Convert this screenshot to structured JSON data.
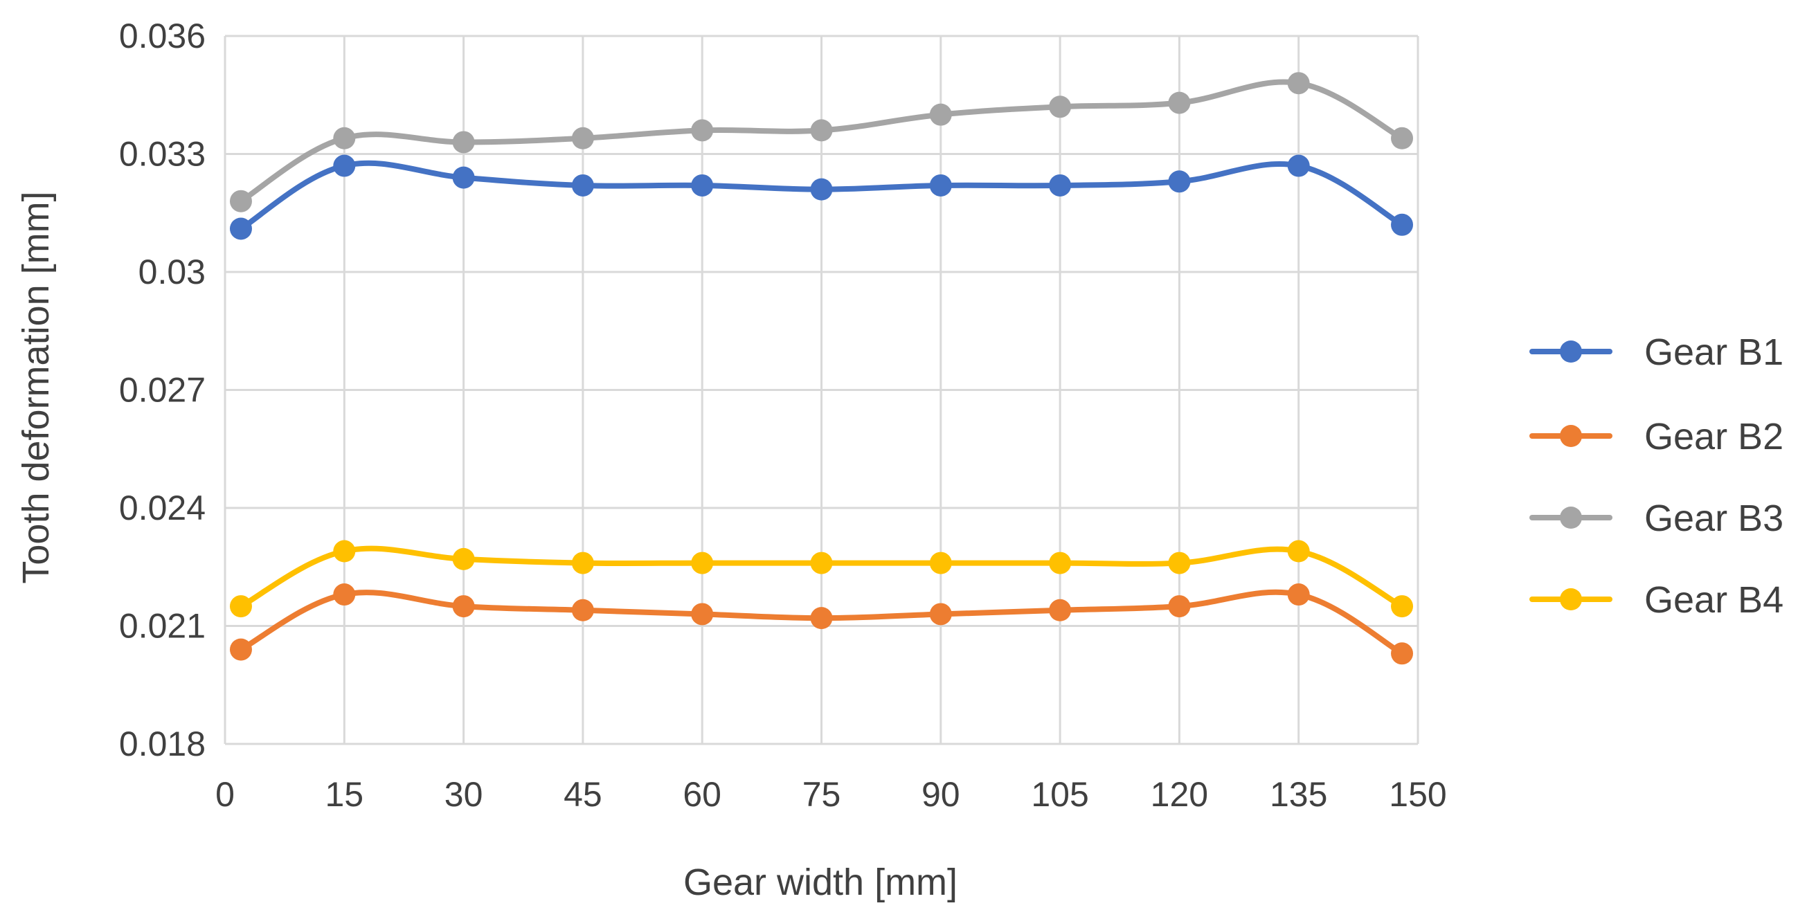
{
  "chart_data": {
    "type": "line",
    "title": "",
    "xlabel": "Gear width [mm]",
    "ylabel": "Tooth deformation [mm]",
    "xlim": [
      0,
      150
    ],
    "ylim": [
      0.018,
      0.036
    ],
    "x_ticks": [
      0,
      15,
      30,
      45,
      60,
      75,
      90,
      105,
      120,
      135,
      150
    ],
    "x_tick_labels": [
      "0",
      "15",
      "30",
      "45",
      "60",
      "75",
      "90",
      "105",
      "120",
      "135",
      "150"
    ],
    "y_ticks": [
      0.018,
      0.021,
      0.024,
      0.027,
      0.03,
      0.033,
      0.036
    ],
    "y_tick_labels": [
      "0.018",
      "0.021",
      "0.024",
      "0.027",
      "0.03",
      "0.033",
      "0.036"
    ],
    "grid": true,
    "legend_position": "right",
    "x": [
      2,
      15,
      30,
      45,
      60,
      75,
      90,
      105,
      120,
      135,
      148
    ],
    "series": [
      {
        "name": "Gear B1",
        "color": "#4472C4",
        "values": [
          0.0311,
          0.0327,
          0.0324,
          0.0322,
          0.0322,
          0.0321,
          0.0322,
          0.0322,
          0.0323,
          0.0327,
          0.0312
        ]
      },
      {
        "name": "Gear B2",
        "color": "#ED7D31",
        "values": [
          0.0204,
          0.0218,
          0.0215,
          0.0214,
          0.0213,
          0.0212,
          0.0213,
          0.0214,
          0.0215,
          0.0218,
          0.0203
        ]
      },
      {
        "name": "Gear B3",
        "color": "#A5A5A5",
        "values": [
          0.0318,
          0.0334,
          0.0333,
          0.0334,
          0.0336,
          0.0336,
          0.034,
          0.0342,
          0.0343,
          0.0348,
          0.0334
        ]
      },
      {
        "name": "Gear B4",
        "color": "#FFC000",
        "values": [
          0.0215,
          0.0229,
          0.0227,
          0.0226,
          0.0226,
          0.0226,
          0.0226,
          0.0226,
          0.0226,
          0.0229,
          0.0215
        ]
      }
    ]
  },
  "colors": {
    "grid": "#D9D9D9",
    "text": "#404040",
    "background": "#FFFFFF"
  }
}
